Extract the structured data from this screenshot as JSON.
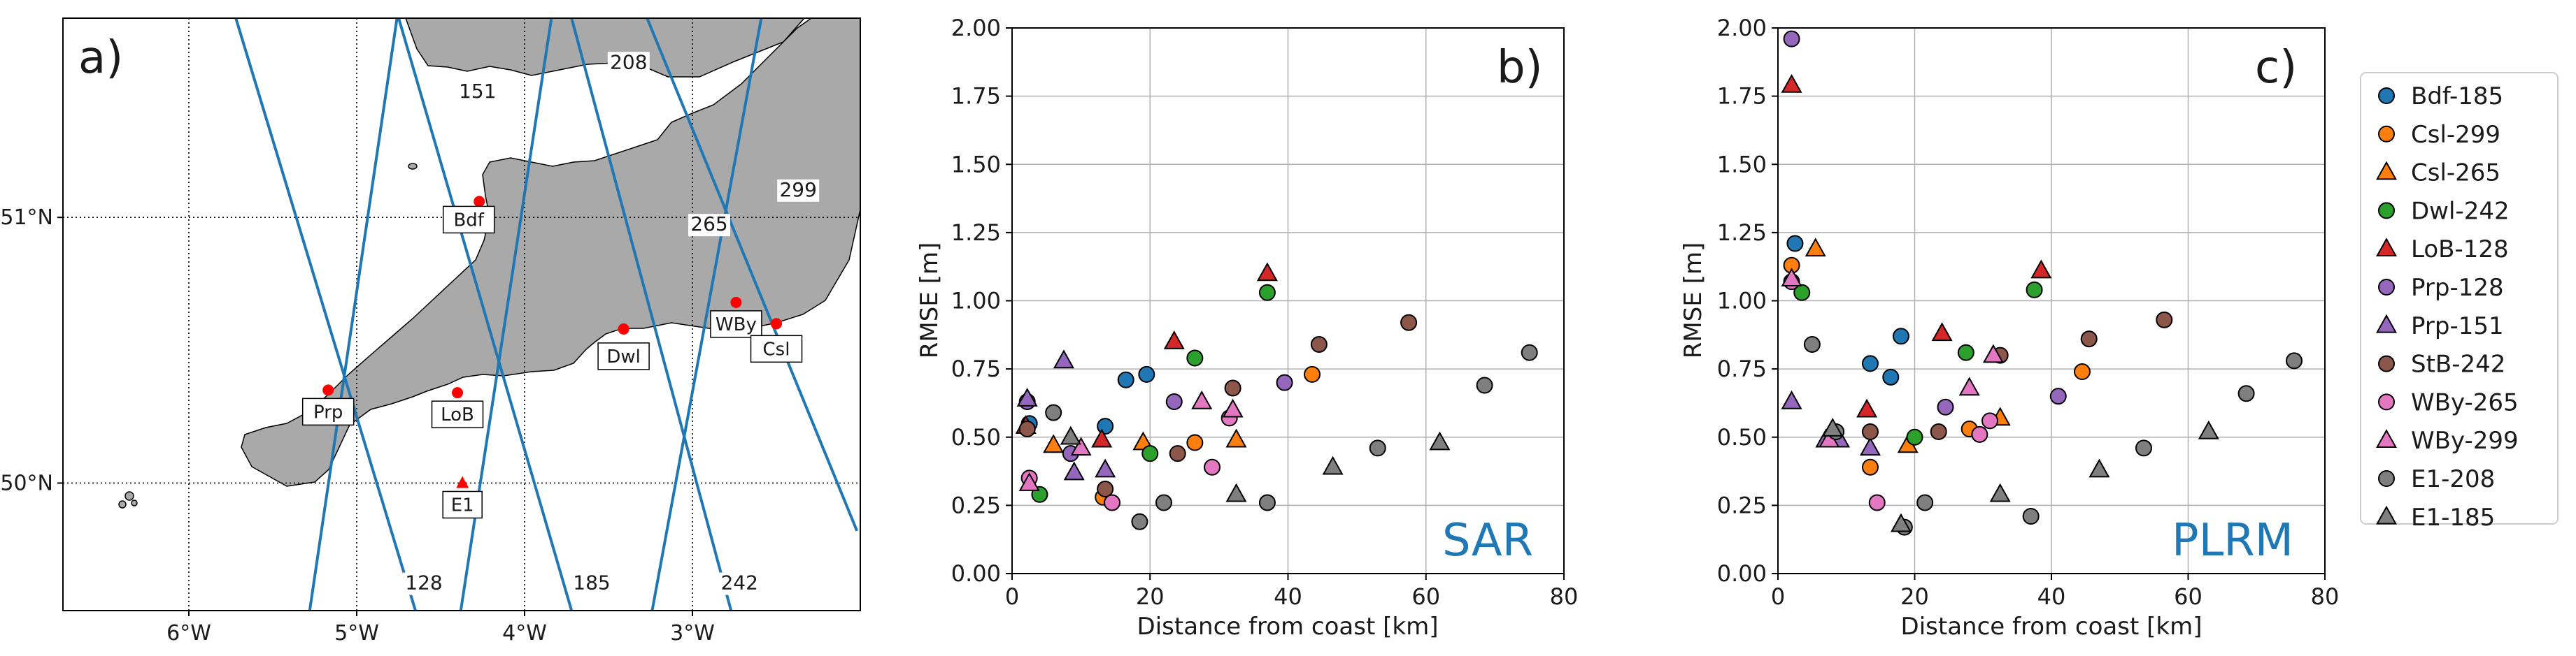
{
  "panels": {
    "a": {
      "panel_label": "a)",
      "lon_ticks": [
        {
          "lon": -6,
          "label": "6°W"
        },
        {
          "lon": -5,
          "label": "5°W"
        },
        {
          "lon": -4,
          "label": "4°W"
        },
        {
          "lon": -3,
          "label": "3°W"
        }
      ],
      "lat_ticks": [
        {
          "lat": 51,
          "label": "51°N"
        },
        {
          "lat": 50,
          "label": "50°N"
        }
      ],
      "lon_range": [
        -6.75,
        -2.0
      ],
      "lat_range": [
        49.52,
        51.75
      ],
      "colors": {
        "land": "#a9a9a9",
        "sea": "#ffffff",
        "track": "#1f77b4",
        "station": "#ff0000"
      },
      "tracks": [
        {
          "id": "128",
          "label": "128",
          "label_lon": -4.6,
          "label_lat": 49.6,
          "lon0": -5.72,
          "lat0": 51.75,
          "lon1": -4.65,
          "lat1": 49.52
        },
        {
          "id": "151",
          "label": "151",
          "label_lon": -4.28,
          "label_lat": 51.45,
          "lon0": -4.76,
          "lat0": 51.75,
          "lon1": -5.28,
          "lat1": 49.52
        },
        {
          "id": "185",
          "label": "185",
          "label_lon": -3.6,
          "label_lat": 49.6,
          "lon0": -4.75,
          "lat0": 51.75,
          "lon1": -3.72,
          "lat1": 49.52
        },
        {
          "id": "208",
          "label": "208",
          "label_lon": -3.38,
          "label_lat": 51.56,
          "lon0": -3.84,
          "lat0": 51.75,
          "lon1": -4.38,
          "lat1": 49.52
        },
        {
          "id": "242",
          "label": "242",
          "label_lon": -2.72,
          "label_lat": 49.6,
          "lon0": -3.72,
          "lat0": 51.75,
          "lon1": -2.77,
          "lat1": 49.52
        },
        {
          "id": "265",
          "label": "265",
          "label_lon": -2.9,
          "label_lat": 50.95,
          "lon0": -3.27,
          "lat0": 51.75,
          "lon1": -2.02,
          "lat1": 49.82
        },
        {
          "id": "299",
          "label": "299",
          "label_lon": -2.37,
          "label_lat": 51.08,
          "lon0": -2.59,
          "lat0": 51.75,
          "lon1": -3.24,
          "lat1": 49.52
        }
      ],
      "stations": [
        {
          "id": "Bdf",
          "label": "Bdf",
          "lon": -4.27,
          "lat": 51.06,
          "marker": "circle",
          "box_dx": -15,
          "box_dy": 25
        },
        {
          "id": "Dwl",
          "label": "Dwl",
          "lon": -3.41,
          "lat": 50.58,
          "marker": "circle",
          "box_dx": 0,
          "box_dy": 38
        },
        {
          "id": "WBy",
          "label": "WBy",
          "lon": -2.74,
          "lat": 50.68,
          "marker": "circle",
          "box_dx": 0,
          "box_dy": 30
        },
        {
          "id": "Csl",
          "label": "Csl",
          "lon": -2.5,
          "lat": 50.6,
          "marker": "circle",
          "box_dx": 0,
          "box_dy": 35
        },
        {
          "id": "Prp",
          "label": "Prp",
          "lon": -5.17,
          "lat": 50.35,
          "marker": "circle",
          "box_dx": 0,
          "box_dy": 30
        },
        {
          "id": "LoB",
          "label": "LoB",
          "lon": -4.4,
          "lat": 50.34,
          "marker": "circle",
          "box_dx": 0,
          "box_dy": 30
        },
        {
          "id": "E1",
          "label": "E1",
          "lon": -4.37,
          "lat": 50.0,
          "marker": "triangle",
          "box_dx": 0,
          "box_dy": 30
        }
      ]
    },
    "b": {
      "panel_label": "b)",
      "method_label": "SAR"
    },
    "c": {
      "panel_label": "c)",
      "method_label": "PLRM"
    }
  },
  "legend": [
    {
      "label": "Bdf-185",
      "marker": "circle",
      "color": "#1f77b4"
    },
    {
      "label": "Csl-299",
      "marker": "circle",
      "color": "#ff7f0e"
    },
    {
      "label": "Csl-265",
      "marker": "triangle",
      "color": "#ff7f0e"
    },
    {
      "label": "Dwl-242",
      "marker": "circle",
      "color": "#2ca02c"
    },
    {
      "label": "LoB-128",
      "marker": "triangle",
      "color": "#d62728"
    },
    {
      "label": "Prp-128",
      "marker": "circle",
      "color": "#9467bd"
    },
    {
      "label": "Prp-151",
      "marker": "triangle",
      "color": "#9467bd"
    },
    {
      "label": "StB-242",
      "marker": "circle",
      "color": "#8c564b"
    },
    {
      "label": "WBy-265",
      "marker": "circle",
      "color": "#e377c2"
    },
    {
      "label": "WBy-299",
      "marker": "triangle",
      "color": "#e377c2"
    },
    {
      "label": "E1-208",
      "marker": "circle",
      "color": "#7f7f7f"
    },
    {
      "label": "E1-185",
      "marker": "triangle",
      "color": "#7f7f7f"
    }
  ],
  "chart_data": [
    {
      "type": "scatter",
      "title": "SAR",
      "xlabel": "Distance from coast [km]",
      "ylabel": "RMSE [m]",
      "xlim": [
        0,
        80
      ],
      "ylim": [
        0,
        2.0
      ],
      "xticks": [
        0,
        20,
        40,
        60,
        80
      ],
      "yticks": [
        0.0,
        0.25,
        0.5,
        0.75,
        1.0,
        1.25,
        1.5,
        1.75,
        2.0
      ],
      "ytick_labels": [
        "0.00",
        "0.25",
        "0.50",
        "0.75",
        "1.00",
        "1.25",
        "1.50",
        "1.75",
        "2.00"
      ],
      "grid": true,
      "series": [
        {
          "name": "Bdf-185",
          "marker": "circle",
          "color": "#1f77b4",
          "points": [
            [
              2.5,
              0.55
            ],
            [
              13.5,
              0.54
            ],
            [
              16.5,
              0.71
            ],
            [
              19.5,
              0.73
            ]
          ]
        },
        {
          "name": "Csl-299",
          "marker": "circle",
          "color": "#ff7f0e",
          "points": [
            [
              13.2,
              0.28
            ],
            [
              26.5,
              0.48
            ],
            [
              43.5,
              0.73
            ]
          ]
        },
        {
          "name": "Csl-265",
          "marker": "triangle",
          "color": "#ff7f0e",
          "points": [
            [
              6.0,
              0.47
            ],
            [
              19.0,
              0.48
            ],
            [
              32.5,
              0.49
            ]
          ]
        },
        {
          "name": "Dwl-242",
          "marker": "circle",
          "color": "#2ca02c",
          "points": [
            [
              4.0,
              0.29
            ],
            [
              20.0,
              0.44
            ],
            [
              26.5,
              0.79
            ],
            [
              37.0,
              1.03
            ]
          ]
        },
        {
          "name": "LoB-128",
          "marker": "triangle",
          "color": "#d62728",
          "points": [
            [
              2.0,
              0.54
            ],
            [
              13.0,
              0.49
            ],
            [
              23.5,
              0.85
            ],
            [
              37.0,
              1.1
            ]
          ]
        },
        {
          "name": "Prp-128",
          "marker": "circle",
          "color": "#9467bd",
          "points": [
            [
              2.2,
              0.63
            ],
            [
              8.5,
              0.44
            ],
            [
              23.5,
              0.63
            ],
            [
              39.5,
              0.7
            ]
          ]
        },
        {
          "name": "Prp-151",
          "marker": "triangle",
          "color": "#9467bd",
          "points": [
            [
              2.2,
              0.64
            ],
            [
              7.5,
              0.78
            ],
            [
              9.0,
              0.37
            ],
            [
              13.5,
              0.38
            ]
          ]
        },
        {
          "name": "StB-242",
          "marker": "circle",
          "color": "#8c564b",
          "points": [
            [
              2.2,
              0.53
            ],
            [
              13.5,
              0.31
            ],
            [
              24.0,
              0.44
            ],
            [
              32.0,
              0.68
            ],
            [
              44.5,
              0.84
            ],
            [
              57.5,
              0.92
            ]
          ]
        },
        {
          "name": "WBy-265",
          "marker": "circle",
          "color": "#e377c2",
          "points": [
            [
              2.5,
              0.35
            ],
            [
              14.5,
              0.26
            ],
            [
              29.0,
              0.39
            ],
            [
              31.5,
              0.57
            ]
          ]
        },
        {
          "name": "WBy-299",
          "marker": "triangle",
          "color": "#e377c2",
          "points": [
            [
              2.5,
              0.33
            ],
            [
              10.0,
              0.46
            ],
            [
              27.5,
              0.63
            ],
            [
              32.0,
              0.6
            ]
          ]
        },
        {
          "name": "E1-208",
          "marker": "circle",
          "color": "#7f7f7f",
          "points": [
            [
              6.0,
              0.59
            ],
            [
              18.5,
              0.19
            ],
            [
              22.0,
              0.26
            ],
            [
              37.0,
              0.26
            ],
            [
              53.0,
              0.46
            ],
            [
              68.5,
              0.69
            ],
            [
              75.0,
              0.81
            ]
          ]
        },
        {
          "name": "E1-185",
          "marker": "triangle",
          "color": "#7f7f7f",
          "points": [
            [
              8.5,
              0.5
            ],
            [
              32.5,
              0.29
            ],
            [
              46.5,
              0.39
            ],
            [
              62.0,
              0.48
            ]
          ]
        }
      ]
    },
    {
      "type": "scatter",
      "title": "PLRM",
      "xlabel": "Distance from coast [km]",
      "ylabel": "RMSE [m]",
      "xlim": [
        0,
        80
      ],
      "ylim": [
        0,
        2.0
      ],
      "xticks": [
        0,
        20,
        40,
        60,
        80
      ],
      "yticks": [
        0.0,
        0.25,
        0.5,
        0.75,
        1.0,
        1.25,
        1.5,
        1.75,
        2.0
      ],
      "ytick_labels": [
        "0.00",
        "0.25",
        "0.50",
        "0.75",
        "1.00",
        "1.25",
        "1.50",
        "1.75",
        "2.00"
      ],
      "grid": true,
      "series": [
        {
          "name": "Bdf-185",
          "marker": "circle",
          "color": "#1f77b4",
          "points": [
            [
              2.5,
              1.21
            ],
            [
              13.5,
              0.77
            ],
            [
              16.5,
              0.72
            ],
            [
              18.0,
              0.87
            ]
          ]
        },
        {
          "name": "Csl-299",
          "marker": "circle",
          "color": "#ff7f0e",
          "points": [
            [
              2.0,
              1.13
            ],
            [
              13.5,
              0.39
            ],
            [
              28.0,
              0.53
            ],
            [
              44.5,
              0.74
            ]
          ]
        },
        {
          "name": "Csl-265",
          "marker": "triangle",
          "color": "#ff7f0e",
          "points": [
            [
              5.5,
              1.19
            ],
            [
              19.0,
              0.47
            ],
            [
              32.5,
              0.57
            ]
          ]
        },
        {
          "name": "Dwl-242",
          "marker": "circle",
          "color": "#2ca02c",
          "points": [
            [
              3.5,
              1.03
            ],
            [
              20.0,
              0.5
            ],
            [
              27.5,
              0.81
            ],
            [
              37.5,
              1.04
            ]
          ]
        },
        {
          "name": "LoB-128",
          "marker": "triangle",
          "color": "#d62728",
          "points": [
            [
              2.0,
              1.79
            ],
            [
              13.0,
              0.6
            ],
            [
              24.0,
              0.88
            ],
            [
              38.5,
              1.11
            ]
          ]
        },
        {
          "name": "Prp-128",
          "marker": "circle",
          "color": "#9467bd",
          "points": [
            [
              2.0,
              1.96
            ],
            [
              24.5,
              0.61
            ],
            [
              41.0,
              0.65
            ]
          ]
        },
        {
          "name": "Prp-151",
          "marker": "triangle",
          "color": "#9467bd",
          "points": [
            [
              2.0,
              0.63
            ],
            [
              7.0,
              0.49
            ],
            [
              9.0,
              0.49
            ],
            [
              13.5,
              0.46
            ]
          ]
        },
        {
          "name": "StB-242",
          "marker": "circle",
          "color": "#8c564b",
          "points": [
            [
              13.5,
              0.52
            ],
            [
              23.5,
              0.52
            ],
            [
              32.5,
              0.8
            ],
            [
              45.5,
              0.86
            ],
            [
              56.5,
              0.93
            ]
          ]
        },
        {
          "name": "WBy-265",
          "marker": "circle",
          "color": "#e377c2",
          "points": [
            [
              2.0,
              1.07
            ],
            [
              14.5,
              0.26
            ],
            [
              29.5,
              0.51
            ],
            [
              31.0,
              0.56
            ]
          ]
        },
        {
          "name": "WBy-299",
          "marker": "triangle",
          "color": "#e377c2",
          "points": [
            [
              2.0,
              1.08
            ],
            [
              7.5,
              0.49
            ],
            [
              28.0,
              0.68
            ],
            [
              31.5,
              0.8
            ]
          ]
        },
        {
          "name": "E1-208",
          "marker": "circle",
          "color": "#7f7f7f",
          "points": [
            [
              5.0,
              0.84
            ],
            [
              8.5,
              0.52
            ],
            [
              18.5,
              0.17
            ],
            [
              21.5,
              0.26
            ],
            [
              37.0,
              0.21
            ],
            [
              53.5,
              0.46
            ],
            [
              68.5,
              0.66
            ],
            [
              75.5,
              0.78
            ]
          ]
        },
        {
          "name": "E1-185",
          "marker": "triangle",
          "color": "#7f7f7f",
          "points": [
            [
              8.0,
              0.53
            ],
            [
              18.0,
              0.18
            ],
            [
              32.5,
              0.29
            ],
            [
              47.0,
              0.38
            ],
            [
              63.0,
              0.52
            ]
          ]
        }
      ]
    }
  ]
}
